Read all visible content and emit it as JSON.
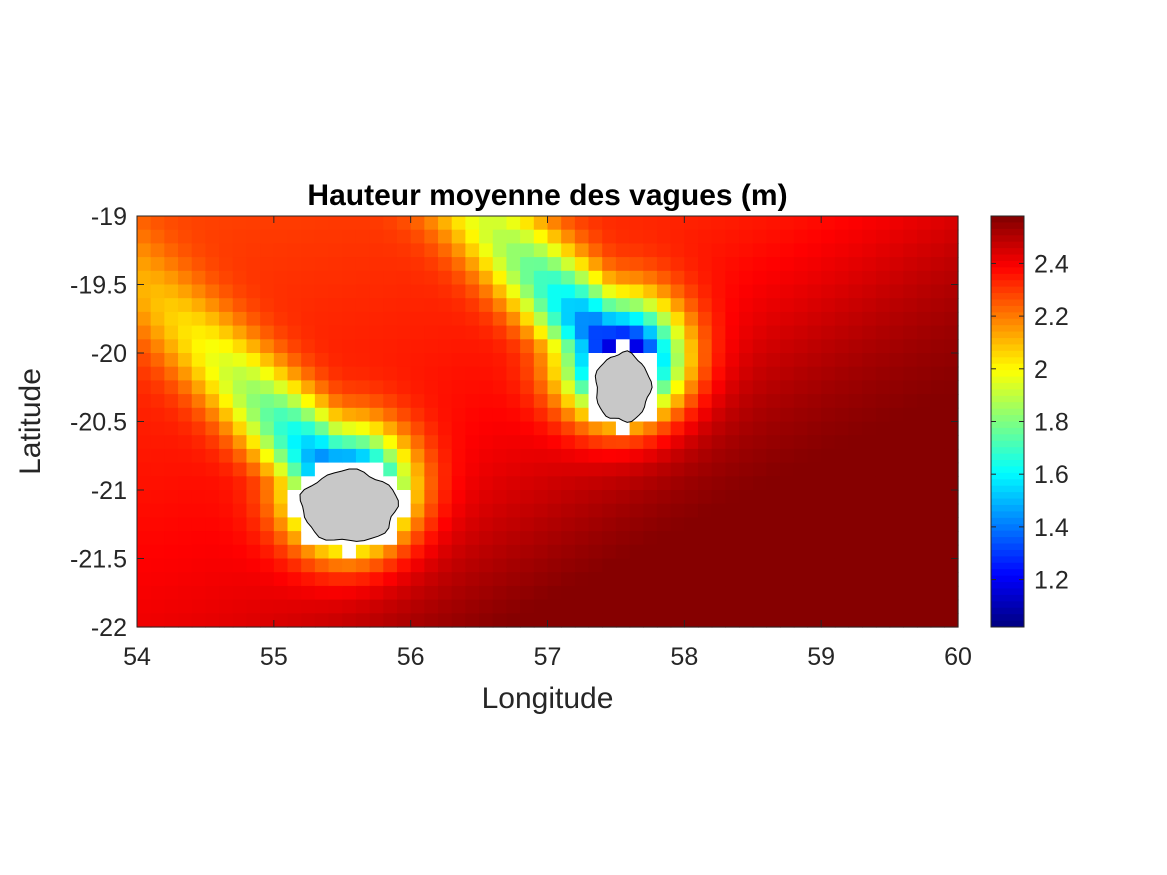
{
  "chart_data": {
    "type": "heatmap",
    "title": "Hauteur moyenne des vagues (m)",
    "xlabel": "Longitude",
    "ylabel": "Latitude",
    "xlim": [
      54,
      60
    ],
    "ylim": [
      -22,
      -19
    ],
    "xticks": [
      "54",
      "55",
      "56",
      "57",
      "58",
      "59",
      "60"
    ],
    "yticks": [
      "-19",
      "-19.5",
      "-20",
      "-20.5",
      "-21",
      "-21.5",
      "-22"
    ],
    "colorbar": {
      "colormap": "jet",
      "clim": [
        1.02,
        2.58
      ],
      "ticks": [
        "1.2",
        "1.4",
        "1.6",
        "1.8",
        "2",
        "2.2",
        "2.4"
      ]
    },
    "grid_resolution_deg": 0.1,
    "land_color": "#c8c8c8",
    "islands": [
      {
        "center_lon": 55.55,
        "center_lat": -21.12,
        "rx_deg": 0.35,
        "ry_deg": 0.26
      },
      {
        "center_lon": 57.55,
        "center_lat": -20.25,
        "rx_deg": 0.2,
        "ry_deg": 0.25
      }
    ],
    "field_description": {
      "open_ocean_west": 2.3,
      "open_ocean_southeast": 2.55,
      "min_in_lee": 1.05
    }
  }
}
